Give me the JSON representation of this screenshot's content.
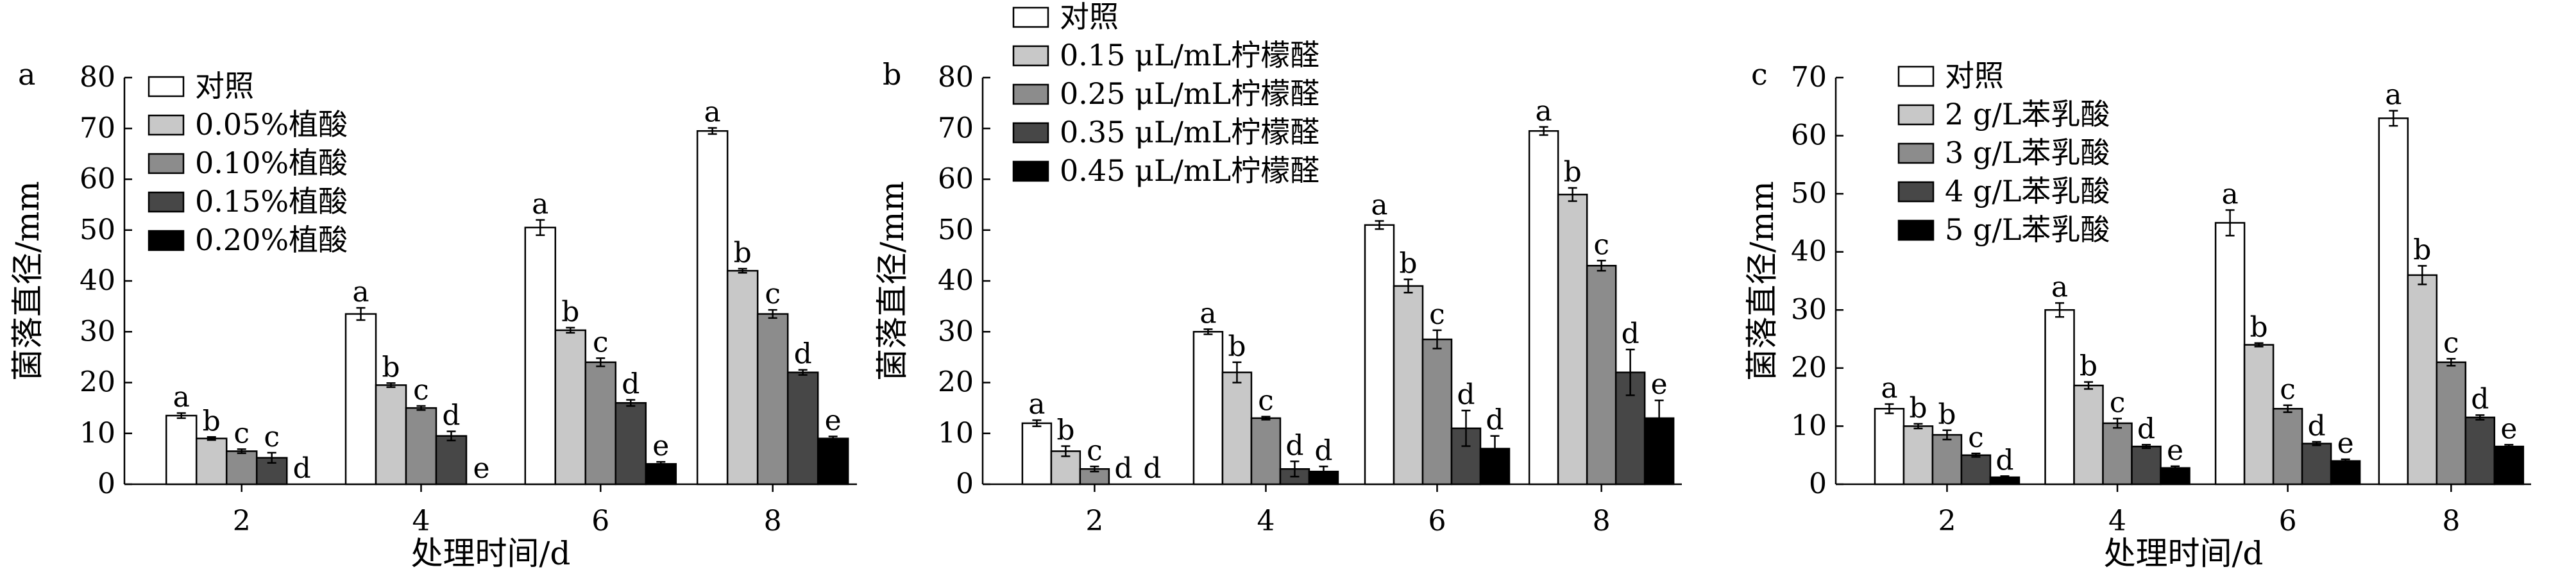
{
  "chart_data": [
    {
      "type": "bar",
      "panel_label": "a",
      "ylabel": "菌落直径/mm",
      "xlabel": "处理时间/d",
      "ylim": [
        0,
        80
      ],
      "yticks": [
        0,
        10,
        20,
        30,
        40,
        50,
        60,
        70,
        80
      ],
      "categories": [
        "2",
        "4",
        "6",
        "8"
      ],
      "legend_position": "top-left",
      "series": [
        {
          "name": "对照",
          "color": "#ffffff",
          "values": [
            13.5,
            33.5,
            50.5,
            69.5
          ],
          "errors": [
            0.5,
            1.2,
            1.5,
            0.6
          ],
          "letters": [
            "a",
            "a",
            "a",
            "a"
          ]
        },
        {
          "name": "0.05%植酸",
          "color": "#c8c8c8",
          "values": [
            9,
            19.5,
            30.3,
            42
          ],
          "errors": [
            0.3,
            0.4,
            0.5,
            0.4
          ],
          "letters": [
            "b",
            "b",
            "b",
            "b"
          ]
        },
        {
          "name": "0.10%植酸",
          "color": "#8c8c8c",
          "values": [
            6.5,
            15,
            24,
            33.5
          ],
          "errors": [
            0.4,
            0.4,
            0.8,
            0.8
          ],
          "letters": [
            "c",
            "c",
            "c",
            "c"
          ]
        },
        {
          "name": "0.15%植酸",
          "color": "#474747",
          "values": [
            5.2,
            9.5,
            16,
            22
          ],
          "errors": [
            1.0,
            0.9,
            0.6,
            0.5
          ],
          "letters": [
            "c",
            "d",
            "d",
            "d"
          ]
        },
        {
          "name": "0.20%植酸",
          "color": "#000000",
          "values": [
            0,
            0,
            4,
            9
          ],
          "errors": [
            0,
            0,
            0.4,
            0.4
          ],
          "letters": [
            "d",
            "e",
            "e",
            "e"
          ]
        }
      ]
    },
    {
      "type": "bar",
      "panel_label": "b",
      "ylabel": "菌落直径/mm",
      "xlabel": "",
      "ylim": [
        0,
        80
      ],
      "yticks": [
        0,
        10,
        20,
        30,
        40,
        50,
        60,
        70,
        80
      ],
      "categories": [
        "2",
        "4",
        "6",
        "8"
      ],
      "legend_position": "top-left",
      "series": [
        {
          "name": "对照",
          "color": "#ffffff",
          "values": [
            12,
            30,
            51,
            69.5
          ],
          "errors": [
            0.6,
            0.5,
            0.8,
            0.8
          ],
          "letters": [
            "a",
            "a",
            "a",
            "a"
          ]
        },
        {
          "name": "0.15 μL/mL柠檬醛",
          "color": "#c8c8c8",
          "values": [
            6.5,
            22,
            39,
            57
          ],
          "errors": [
            1.0,
            2.0,
            1.3,
            1.3
          ],
          "letters": [
            "b",
            "b",
            "b",
            "b"
          ]
        },
        {
          "name": "0.25 μL/mL柠檬醛",
          "color": "#8c8c8c",
          "values": [
            3,
            13,
            28.5,
            43
          ],
          "errors": [
            0.5,
            0.3,
            1.8,
            1.0
          ],
          "letters": [
            "c",
            "c",
            "c",
            "c"
          ]
        },
        {
          "name": "0.35 μL/mL柠檬醛",
          "color": "#474747",
          "values": [
            0,
            3,
            11,
            22
          ],
          "errors": [
            0,
            1.5,
            3.5,
            4.5
          ],
          "letters": [
            "d",
            "d",
            "d",
            "d"
          ]
        },
        {
          "name": "0.45 μL/mL柠檬醛",
          "color": "#000000",
          "values": [
            0,
            2.5,
            7,
            13
          ],
          "errors": [
            0,
            1.0,
            2.5,
            3.5
          ],
          "letters": [
            "d",
            "d",
            "d",
            "e"
          ]
        }
      ]
    },
    {
      "type": "bar",
      "panel_label": "c",
      "ylabel": "菌落直径/mm",
      "xlabel": "处理时间/d",
      "ylim": [
        0,
        70
      ],
      "yticks": [
        0,
        10,
        20,
        30,
        40,
        50,
        60,
        70
      ],
      "categories": [
        "2",
        "4",
        "6",
        "8"
      ],
      "legend_position": "top-left",
      "series": [
        {
          "name": "对照",
          "color": "#ffffff",
          "values": [
            13,
            30,
            45,
            63
          ],
          "errors": [
            0.8,
            1.2,
            2.2,
            1.3
          ],
          "letters": [
            "a",
            "a",
            "a",
            "a"
          ]
        },
        {
          "name": "2 g/L苯乳酸",
          "color": "#c8c8c8",
          "values": [
            10,
            17,
            24,
            36
          ],
          "errors": [
            0.4,
            0.6,
            0.3,
            1.6
          ],
          "letters": [
            "b",
            "b",
            "b",
            "b"
          ]
        },
        {
          "name": "3 g/L苯乳酸",
          "color": "#8c8c8c",
          "values": [
            8.5,
            10.5,
            13,
            21
          ],
          "errors": [
            0.8,
            0.8,
            0.6,
            0.6
          ],
          "letters": [
            "b",
            "c",
            "c",
            "c"
          ]
        },
        {
          "name": "4 g/L苯乳酸",
          "color": "#474747",
          "values": [
            5,
            6.5,
            7,
            11.5
          ],
          "errors": [
            0.3,
            0.3,
            0.3,
            0.4
          ],
          "letters": [
            "c",
            "d",
            "d",
            "d"
          ]
        },
        {
          "name": "5 g/L苯乳酸",
          "color": "#000000",
          "values": [
            1.2,
            2.8,
            4,
            6.5
          ],
          "errors": [
            0.2,
            0.3,
            0.3,
            0.3
          ],
          "letters": [
            "d",
            "e",
            "e",
            "e"
          ]
        }
      ]
    }
  ]
}
